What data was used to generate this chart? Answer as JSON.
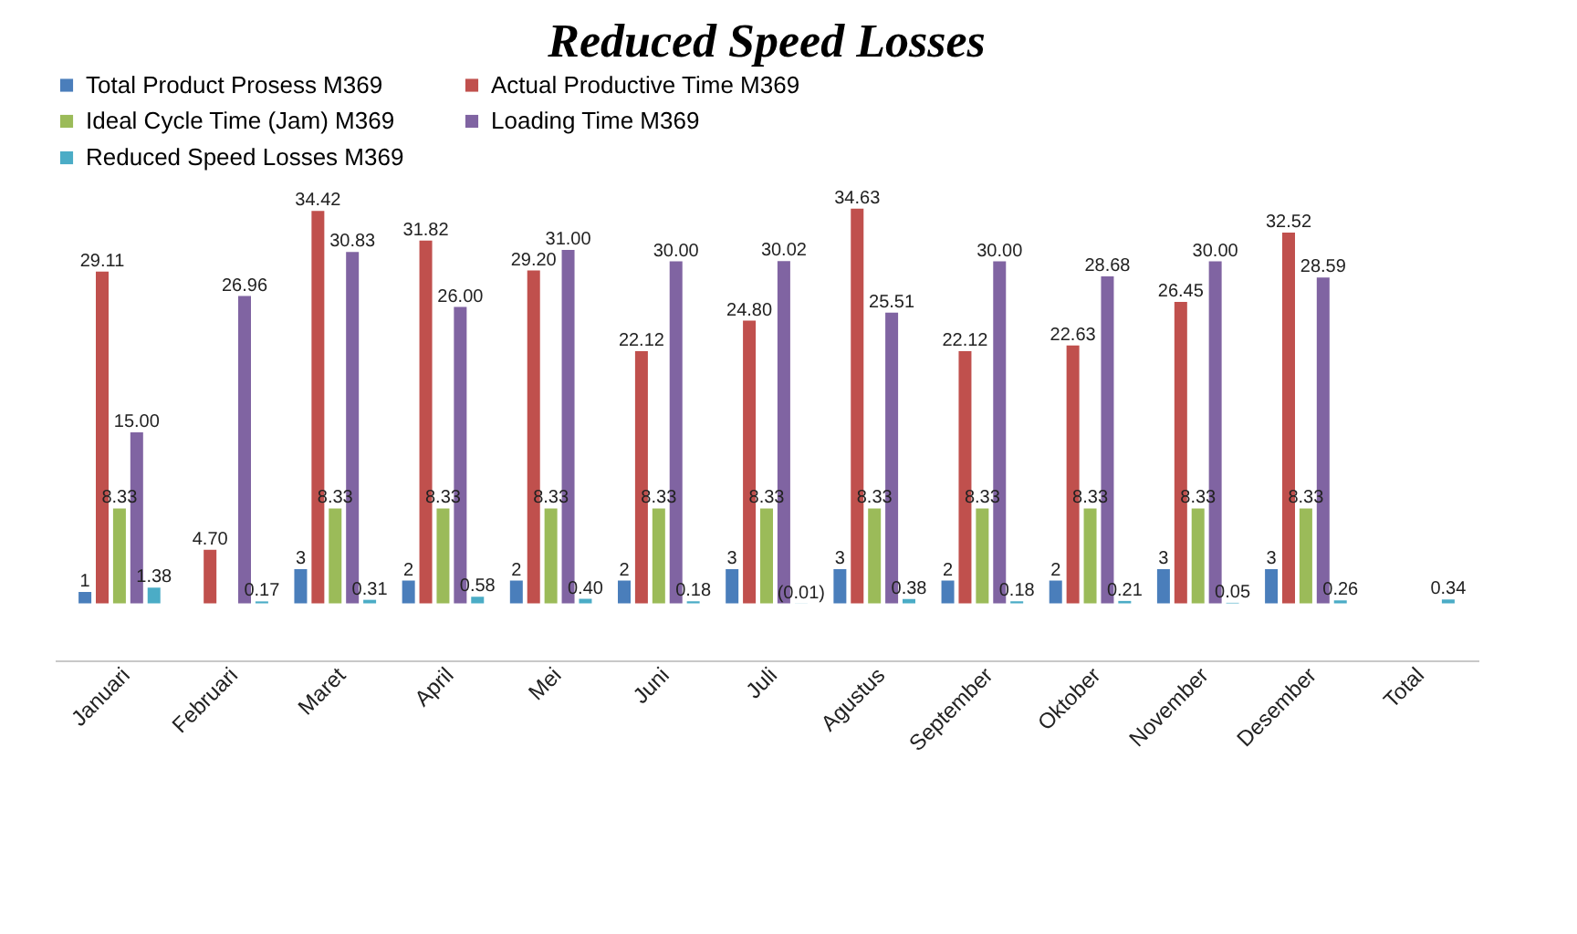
{
  "chart_data": {
    "type": "bar",
    "title": "Reduced Speed Losses",
    "categories": [
      "Januari",
      "Februari",
      "Maret",
      "April",
      "Mei",
      "Juni",
      "Juli",
      "Agustus",
      "September",
      "Oktober",
      "November",
      "Desember",
      "Total"
    ],
    "series": [
      {
        "name": "Total Product Prosess M369",
        "color": "#4a7ebb",
        "values": [
          1,
          null,
          3,
          2,
          2,
          2,
          3,
          3,
          2,
          2,
          3,
          3,
          null
        ],
        "value_labels": [
          "1",
          null,
          "3",
          "2",
          "2",
          "2",
          "3",
          "3",
          "2",
          "2",
          "3",
          "3",
          null
        ]
      },
      {
        "name": "Actual Productive Time M369",
        "color": "#c0504d",
        "values": [
          29.11,
          4.7,
          34.42,
          31.82,
          29.2,
          22.12,
          24.8,
          34.63,
          22.12,
          22.63,
          26.45,
          32.52,
          null
        ],
        "value_labels": [
          "29.11",
          "4.70",
          "34.42",
          "31.82",
          "29.20",
          "22.12",
          "24.80",
          "34.63",
          "22.12",
          "22.63",
          "26.45",
          "32.52",
          null
        ]
      },
      {
        "name": "Ideal Cycle Time (Jam) M369",
        "color": "#9bbb59",
        "values": [
          8.33,
          null,
          8.33,
          8.33,
          8.33,
          8.33,
          8.33,
          8.33,
          8.33,
          8.33,
          8.33,
          8.33,
          null
        ],
        "value_labels": [
          "8.33",
          null,
          "8.33",
          "8.33",
          "8.33",
          "8.33",
          "8.33",
          "8.33",
          "8.33",
          "8.33",
          "8.33",
          "8.33",
          null
        ]
      },
      {
        "name": "Loading Time M369",
        "color": "#8064a2",
        "values": [
          15.0,
          26.96,
          30.83,
          26.0,
          31.0,
          30.0,
          30.02,
          25.51,
          30.0,
          28.68,
          30.0,
          28.59,
          null
        ],
        "value_labels": [
          "15.00",
          "26.96",
          "30.83",
          "26.00",
          "31.00",
          "30.00",
          "30.02",
          "25.51",
          "30.00",
          "28.68",
          "30.00",
          "28.59",
          null
        ]
      },
      {
        "name": "Reduced Speed Losses M369",
        "color": "#4bacc6",
        "values": [
          1.38,
          0.17,
          0.31,
          0.58,
          0.4,
          0.18,
          -0.01,
          0.38,
          0.18,
          0.21,
          0.05,
          0.26,
          0.34
        ],
        "value_labels": [
          "1.38",
          "0.17",
          "0.31",
          "0.58",
          "0.40",
          "0.18",
          "(0.01)",
          "0.38",
          "0.18",
          "0.21",
          "0.05",
          "0.26",
          "0.34"
        ]
      }
    ],
    "legend": "top",
    "grid": false
  }
}
